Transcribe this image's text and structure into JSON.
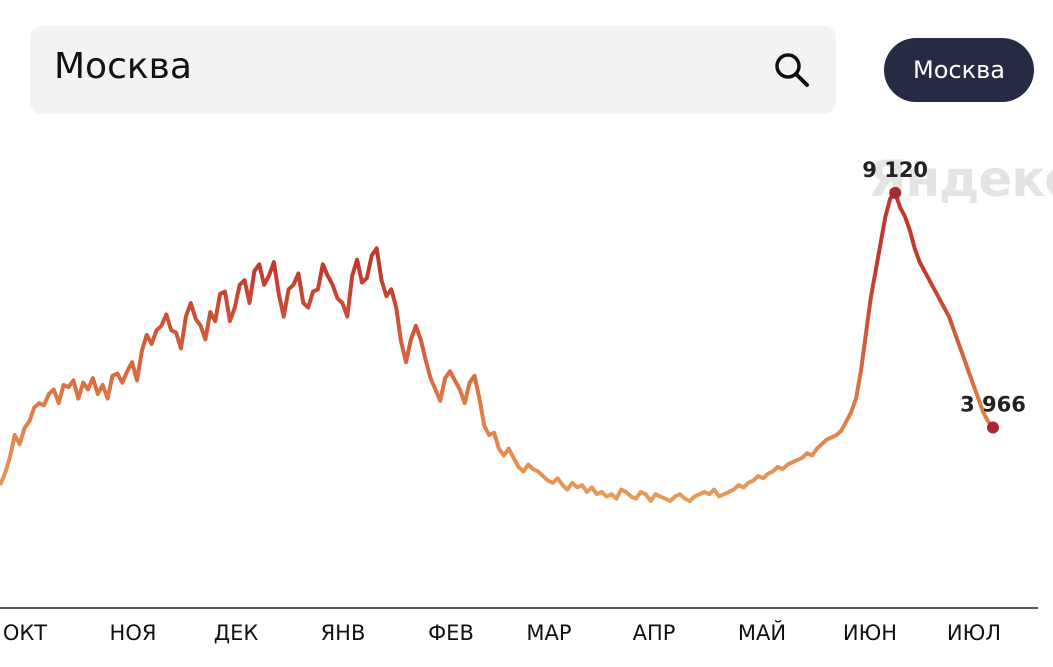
{
  "search": {
    "value": "Москва",
    "icon": "search-icon"
  },
  "city_button": {
    "label": "Москва"
  },
  "watermark": "Яндекс",
  "chart_data": {
    "type": "line",
    "title": "",
    "xlabel": "",
    "ylabel": "",
    "x_ticks": [
      "ОКТ",
      "НОЯ",
      "ДЕК",
      "ЯНВ",
      "ФЕВ",
      "МАР",
      "АПР",
      "МАЙ",
      "ИЮН",
      "ИЮЛ"
    ],
    "ylim": [
      0,
      10500
    ],
    "grid": false,
    "colors": {
      "low": "#e9b56b",
      "mid": "#e07a45",
      "high": "#c03b2e",
      "marker": "#a52a34"
    },
    "annotations": [
      {
        "text": "9 120",
        "value": 9120
      },
      {
        "text": "3 966",
        "value": 3966
      }
    ],
    "series": [
      {
        "values": [
          2700,
          2950,
          3300,
          3800,
          3600,
          3950,
          4100,
          4400,
          4500,
          4450,
          4700,
          4800,
          4500,
          4900,
          4850,
          5000,
          4600,
          4950,
          4800,
          5050,
          4700,
          4900,
          4600,
          5100,
          5150,
          4950,
          5200,
          5400,
          5000,
          5650,
          6000,
          5800,
          6100,
          6200,
          6450,
          6100,
          6050,
          5700,
          6400,
          6700,
          6350,
          6200,
          5900,
          6500,
          6300,
          6900,
          6950,
          6300,
          6600,
          7100,
          7200,
          6700,
          7400,
          7550,
          7100,
          7300,
          7600,
          6900,
          6400,
          7000,
          7100,
          7350,
          6700,
          6600,
          6950,
          7000,
          7550,
          7300,
          7100,
          6800,
          6700,
          6400,
          7300,
          7650,
          7150,
          7250,
          7750,
          7900,
          7200,
          6850,
          7000,
          6600,
          5850,
          5400,
          5900,
          6200,
          5900,
          5450,
          5050,
          4800,
          4550,
          5050,
          5200,
          5000,
          4800,
          4500,
          4950,
          5100,
          4600,
          4000,
          3800,
          3850,
          3500,
          3350,
          3500,
          3300,
          3100,
          3000,
          3150,
          3050,
          3000,
          2900,
          2800,
          2750,
          2850,
          2700,
          2600,
          2750,
          2650,
          2700,
          2550,
          2650,
          2500,
          2550,
          2450,
          2500,
          2400,
          2600,
          2550,
          2450,
          2400,
          2550,
          2500,
          2350,
          2500,
          2450,
          2400,
          2350,
          2450,
          2500,
          2400,
          2350,
          2450,
          2500,
          2550,
          2500,
          2600,
          2450,
          2500,
          2550,
          2600,
          2700,
          2650,
          2750,
          2800,
          2900,
          2850,
          2950,
          3000,
          3100,
          3050,
          3150,
          3200,
          3250,
          3300,
          3400,
          3350,
          3500,
          3600,
          3700,
          3750,
          3800,
          3900,
          4100,
          4300,
          4600,
          5200,
          6000,
          6800,
          7400,
          8000,
          8600,
          9000,
          9120,
          8800,
          8600,
          8300,
          7900,
          7600,
          7400,
          7200,
          7000,
          6800,
          6600,
          6400,
          6100,
          5800,
          5500,
          5200,
          4900,
          4600,
          4300,
          4100,
          3966
        ]
      }
    ]
  }
}
